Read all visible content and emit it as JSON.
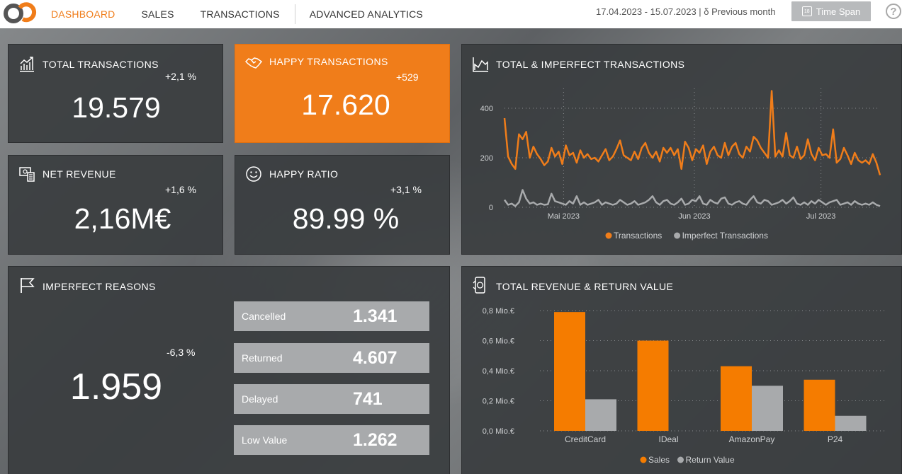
{
  "nav": {
    "items": [
      {
        "label": "DASHBOARD",
        "active": true
      },
      {
        "label": "SALES",
        "active": false
      },
      {
        "label": "TRANSACTIONS",
        "active": false
      },
      {
        "label": "ADVANCED ANALYTICS",
        "active": false
      }
    ],
    "date_range": "17.04.2023 - 15.07.2023 | δ Previous month",
    "timespan_label": "Time Span",
    "calendar_day": "18",
    "help_label": "?"
  },
  "colors": {
    "accent": "#f07d1a",
    "secondary": "#a8aaac",
    "card": "#3a3d40"
  },
  "kpis": {
    "total_transactions": {
      "title": "TOTAL TRANSACTIONS",
      "value": "19.579",
      "delta": "+2,1 %"
    },
    "happy_transactions": {
      "title": "HAPPY TRANSACTIONS",
      "value": "17.620",
      "delta": "+529"
    },
    "net_revenue": {
      "title": "NET REVENUE",
      "value": "2,16M€",
      "delta": "+1,6 %"
    },
    "happy_ratio": {
      "title": "HAPPY RATIO",
      "value": "89.99 %",
      "delta": "+3,1 %"
    }
  },
  "imperfect": {
    "title": "IMPERFECT REASONS",
    "value": "1.959",
    "delta": "-6,3 %",
    "reasons": [
      {
        "label": "Cancelled",
        "value": "1.341"
      },
      {
        "label": "Returned",
        "value": "4.607"
      },
      {
        "label": "Delayed",
        "value": "741"
      },
      {
        "label": "Low Value",
        "value": "1.262"
      }
    ]
  },
  "chart_data": [
    {
      "type": "line",
      "title": "TOTAL & IMPERFECT TRANSACTIONS",
      "x_range": [
        "2023-04-17",
        "2023-07-15"
      ],
      "x_ticks": [
        {
          "label": "Mai 2023",
          "date": "2023-05-01"
        },
        {
          "label": "Jun 2023",
          "date": "2023-06-01"
        },
        {
          "label": "Jul 2023",
          "date": "2023-07-01"
        }
      ],
      "y_ticks": [
        0,
        200,
        400
      ],
      "ylim": [
        0,
        480
      ],
      "grid": true,
      "legend_position": "bottom",
      "series": [
        {
          "name": "Transactions",
          "color": "#f07d1a",
          "values": [
            360,
            205,
            175,
            155,
            295,
            275,
            305,
            200,
            245,
            215,
            195,
            170,
            185,
            240,
            205,
            225,
            175,
            250,
            210,
            220,
            180,
            230,
            200,
            215,
            195,
            200,
            185,
            210,
            235,
            190,
            205,
            235,
            270,
            210,
            200,
            190,
            225,
            195,
            240,
            260,
            220,
            200,
            225,
            185,
            240,
            220,
            240,
            210,
            235,
            155,
            265,
            240,
            190,
            235,
            220,
            250,
            175,
            225,
            245,
            210,
            200,
            260,
            210,
            245,
            260,
            215,
            200,
            245,
            225,
            285,
            270,
            240,
            220,
            200,
            470,
            205,
            230,
            205,
            300,
            210,
            200,
            245,
            195,
            210,
            275,
            215,
            190,
            240,
            210,
            215,
            200,
            315,
            180,
            195,
            240,
            210,
            175,
            220,
            190,
            180,
            190,
            175,
            215,
            180,
            130
          ]
        },
        {
          "name": "Imperfect Transactions",
          "color": "#a8aaac",
          "values": [
            30,
            10,
            15,
            5,
            20,
            70,
            35,
            15,
            20,
            10,
            15,
            10,
            12,
            55,
            25,
            20,
            15,
            10,
            25,
            15,
            45,
            10,
            20,
            10,
            15,
            20,
            30,
            10,
            20,
            15,
            10,
            15,
            30,
            20,
            10,
            15,
            25,
            10,
            15,
            20,
            30,
            45,
            20,
            10,
            25,
            30,
            15,
            10,
            20,
            35,
            10,
            15,
            30,
            25,
            45,
            15,
            10,
            30,
            20,
            15,
            35,
            40,
            15,
            10,
            20,
            25,
            15,
            10,
            30,
            45,
            20,
            15,
            30,
            25,
            10,
            15,
            20,
            30,
            15,
            25,
            40,
            15,
            10,
            20,
            10,
            25,
            15,
            30,
            20,
            10,
            20,
            25,
            30,
            10,
            15,
            20,
            10,
            25,
            15,
            10,
            15,
            10,
            20,
            10,
            5
          ]
        }
      ]
    },
    {
      "type": "bar",
      "title": "TOTAL REVENUE & RETURN VALUE",
      "categories": [
        "CreditCard",
        "IDeal",
        "AmazonPay",
        "P24"
      ],
      "y_ticks": [
        "0,0 Mio.€",
        "0,2 Mio.€",
        "0,4 Mio.€",
        "0,6 Mio.€",
        "0,8 Mio.€"
      ],
      "ylim": [
        0,
        0.8
      ],
      "grid": true,
      "legend_position": "bottom",
      "series": [
        {
          "name": "Sales",
          "color": "#f57c00",
          "values": [
            0.79,
            0.6,
            0.43,
            0.34
          ]
        },
        {
          "name": "Return Value",
          "color": "#a8aaac",
          "values": [
            0.21,
            0.0,
            0.3,
            0.1
          ]
        }
      ]
    }
  ]
}
